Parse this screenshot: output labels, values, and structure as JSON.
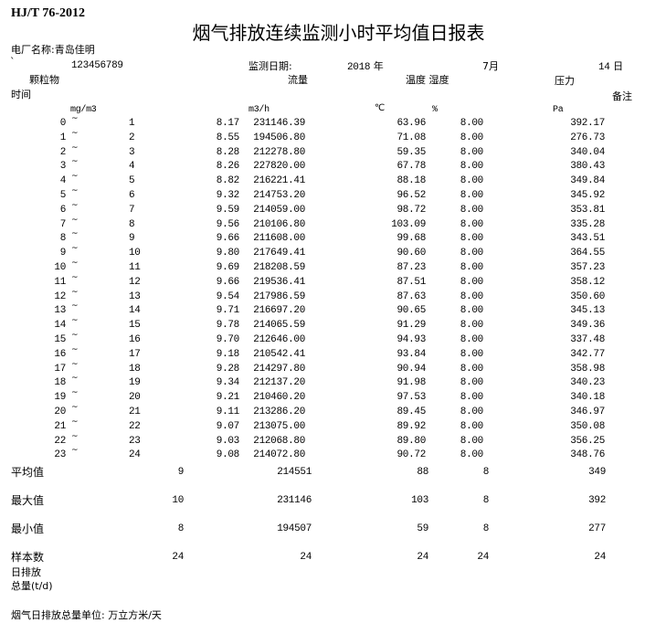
{
  "standard": "HJ/T 76-2012",
  "title": "烟气排放连续监测小时平均值日报表",
  "plant": {
    "label": "电厂名称:",
    "name": "青岛佳明"
  },
  "mark": "`",
  "plant_code": "123456789",
  "date": {
    "label": "监测日期:",
    "year": "2018",
    "year_unit": "年",
    "month": "7月",
    "day": "14",
    "day_unit": "日"
  },
  "headers": {
    "particles": "颗粒物",
    "flow": "流量",
    "temp_humidity": "温度 湿度",
    "pressure": "压力",
    "time": "时间",
    "remark": "备注"
  },
  "units": {
    "particles": "mg/m3",
    "flow": "m3/h",
    "temp": "℃",
    "humidity": "%",
    "pressure": "Pa"
  },
  "tilde": "~",
  "rows": [
    {
      "start": "0",
      "end": "1",
      "particles": "8.17",
      "flow": "231146.39",
      "temp": "63.96",
      "humidity": "8.00",
      "pressure": "392.17"
    },
    {
      "start": "1",
      "end": "2",
      "particles": "8.55",
      "flow": "194506.80",
      "temp": "71.08",
      "humidity": "8.00",
      "pressure": "276.73"
    },
    {
      "start": "2",
      "end": "3",
      "particles": "8.28",
      "flow": "212278.80",
      "temp": "59.35",
      "humidity": "8.00",
      "pressure": "340.04"
    },
    {
      "start": "3",
      "end": "4",
      "particles": "8.26",
      "flow": "227820.00",
      "temp": "67.78",
      "humidity": "8.00",
      "pressure": "380.43"
    },
    {
      "start": "4",
      "end": "5",
      "particles": "8.82",
      "flow": "216221.41",
      "temp": "88.18",
      "humidity": "8.00",
      "pressure": "349.84"
    },
    {
      "start": "5",
      "end": "6",
      "particles": "9.32",
      "flow": "214753.20",
      "temp": "96.52",
      "humidity": "8.00",
      "pressure": "345.92"
    },
    {
      "start": "6",
      "end": "7",
      "particles": "9.59",
      "flow": "214059.00",
      "temp": "98.72",
      "humidity": "8.00",
      "pressure": "353.81"
    },
    {
      "start": "7",
      "end": "8",
      "particles": "9.56",
      "flow": "210106.80",
      "temp": "103.09",
      "humidity": "8.00",
      "pressure": "335.28"
    },
    {
      "start": "8",
      "end": "9",
      "particles": "9.66",
      "flow": "211608.00",
      "temp": "99.68",
      "humidity": "8.00",
      "pressure": "343.51"
    },
    {
      "start": "9",
      "end": "10",
      "particles": "9.80",
      "flow": "217649.41",
      "temp": "90.60",
      "humidity": "8.00",
      "pressure": "364.55"
    },
    {
      "start": "10",
      "end": "11",
      "particles": "9.69",
      "flow": "218208.59",
      "temp": "87.23",
      "humidity": "8.00",
      "pressure": "357.23"
    },
    {
      "start": "11",
      "end": "12",
      "particles": "9.66",
      "flow": "219536.41",
      "temp": "87.51",
      "humidity": "8.00",
      "pressure": "358.12"
    },
    {
      "start": "12",
      "end": "13",
      "particles": "9.54",
      "flow": "217986.59",
      "temp": "87.63",
      "humidity": "8.00",
      "pressure": "350.60"
    },
    {
      "start": "13",
      "end": "14",
      "particles": "9.71",
      "flow": "216697.20",
      "temp": "90.65",
      "humidity": "8.00",
      "pressure": "345.13"
    },
    {
      "start": "14",
      "end": "15",
      "particles": "9.78",
      "flow": "214065.59",
      "temp": "91.29",
      "humidity": "8.00",
      "pressure": "349.36"
    },
    {
      "start": "15",
      "end": "16",
      "particles": "9.70",
      "flow": "212646.00",
      "temp": "94.93",
      "humidity": "8.00",
      "pressure": "337.48"
    },
    {
      "start": "16",
      "end": "17",
      "particles": "9.18",
      "flow": "210542.41",
      "temp": "93.84",
      "humidity": "8.00",
      "pressure": "342.77"
    },
    {
      "start": "17",
      "end": "18",
      "particles": "9.28",
      "flow": "214297.80",
      "temp": "90.94",
      "humidity": "8.00",
      "pressure": "358.98"
    },
    {
      "start": "18",
      "end": "19",
      "particles": "9.34",
      "flow": "212137.20",
      "temp": "91.98",
      "humidity": "8.00",
      "pressure": "340.23"
    },
    {
      "start": "19",
      "end": "20",
      "particles": "9.21",
      "flow": "210460.20",
      "temp": "97.53",
      "humidity": "8.00",
      "pressure": "340.18"
    },
    {
      "start": "20",
      "end": "21",
      "particles": "9.11",
      "flow": "213286.20",
      "temp": "89.45",
      "humidity": "8.00",
      "pressure": "346.97"
    },
    {
      "start": "21",
      "end": "22",
      "particles": "9.07",
      "flow": "213075.00",
      "temp": "89.92",
      "humidity": "8.00",
      "pressure": "350.08"
    },
    {
      "start": "22",
      "end": "23",
      "particles": "9.03",
      "flow": "212068.80",
      "temp": "89.80",
      "humidity": "8.00",
      "pressure": "356.25"
    },
    {
      "start": "23",
      "end": "24",
      "particles": "9.08",
      "flow": "214072.80",
      "temp": "90.72",
      "humidity": "8.00",
      "pressure": "348.76"
    }
  ],
  "summary": [
    {
      "label": "平均值",
      "particles": "9",
      "flow": "214551",
      "temp": "88",
      "humidity": "8",
      "pressure": "349"
    },
    {
      "label": "最大值",
      "particles": "10",
      "flow": "231146",
      "temp": "103",
      "humidity": "8",
      "pressure": "392"
    },
    {
      "label": "最小值",
      "particles": "8",
      "flow": "194507",
      "temp": "59",
      "humidity": "8",
      "pressure": "277"
    },
    {
      "label": "样本数",
      "particles": "24",
      "flow": "24",
      "temp": "24",
      "humidity": "24",
      "pressure": "24"
    }
  ],
  "daily_total": {
    "line1": "日排放",
    "line2": "总量(t/d)"
  },
  "footer": "烟气日排放总量单位: 万立方米/天"
}
